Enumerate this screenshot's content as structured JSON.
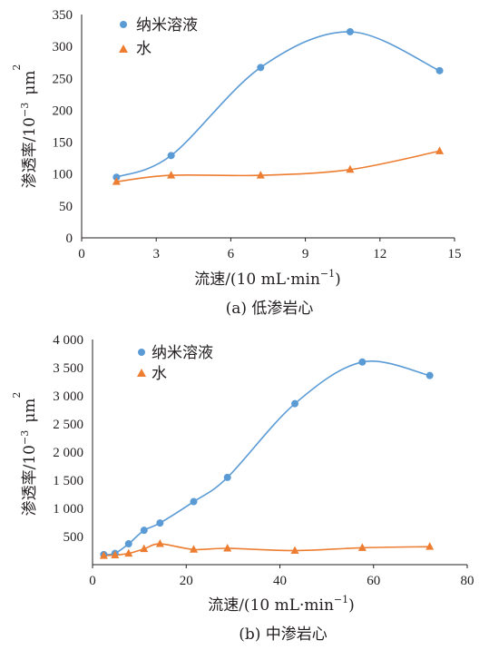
{
  "colors": {
    "nano": "#5b9bd5",
    "water": "#ed7d31",
    "axis": "#231f20"
  },
  "chart_data": [
    {
      "type": "line",
      "caption": "(a) 低渗岩心",
      "xlabel": {
        "main": "流速/(10 mL·min",
        "sup": "−1",
        "close": ")"
      },
      "ylabel": {
        "main": "渗透率/10",
        "sup1": "−3",
        "unit": "μm",
        "sup2": "2"
      },
      "xlim": [
        0,
        15
      ],
      "ylim": [
        0,
        350
      ],
      "xticks": [
        "0",
        "3",
        "6",
        "9",
        "12",
        "15"
      ],
      "yticks": [
        "0",
        "50",
        "100",
        "150",
        "200",
        "250",
        "300",
        "350"
      ],
      "grid": false,
      "legend_position": "top-left",
      "series": [
        {
          "name": "纳米溶液",
          "marker": "circle",
          "x": [
            1.4,
            3.6,
            7.2,
            10.8,
            14.4
          ],
          "y": [
            95,
            129,
            267,
            323,
            262
          ]
        },
        {
          "name": "水",
          "marker": "triangle",
          "x": [
            1.4,
            3.6,
            7.2,
            10.8,
            14.4
          ],
          "y": [
            88,
            98,
            98,
            107,
            136
          ]
        }
      ]
    },
    {
      "type": "line",
      "caption": "(b) 中渗岩心",
      "xlabel": {
        "main": "流速/(10 mL·min",
        "sup": "−1",
        "close": ")"
      },
      "ylabel": {
        "main": "渗透率/10",
        "sup1": "−3",
        "unit": "μm",
        "sup2": "2"
      },
      "xlim": [
        0,
        80
      ],
      "ylim": [
        0,
        4000
      ],
      "xticks": [
        "0",
        "20",
        "40",
        "60",
        "80"
      ],
      "yticks": [
        "500",
        "1 000",
        "1 500",
        "2 000",
        "2 500",
        "3 000",
        "3 500",
        "4 000"
      ],
      "ytick_values": [
        500,
        1000,
        1500,
        2000,
        2500,
        3000,
        3500,
        4000
      ],
      "grid": false,
      "legend_position": "top-left",
      "series": [
        {
          "name": "纳米溶液",
          "marker": "circle",
          "x": [
            2.4,
            4.8,
            7.7,
            11.0,
            14.4,
            21.6,
            28.8,
            43.2,
            57.6,
            72.0
          ],
          "y": [
            180,
            200,
            370,
            610,
            740,
            1120,
            1550,
            2860,
            3600,
            3360
          ]
        },
        {
          "name": "水",
          "marker": "triangle",
          "x": [
            2.4,
            4.8,
            7.7,
            11.0,
            14.4,
            21.6,
            28.8,
            43.2,
            57.6,
            72.0
          ],
          "y": [
            160,
            170,
            200,
            280,
            370,
            270,
            290,
            250,
            300,
            320
          ]
        }
      ]
    }
  ]
}
